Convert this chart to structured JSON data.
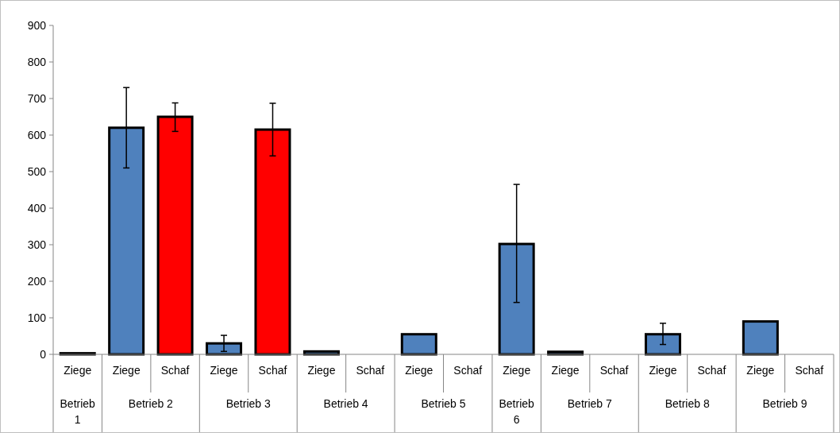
{
  "chart_data": {
    "type": "bar",
    "categories": [
      "Ziege",
      "Ziege",
      "Schaf",
      "Ziege",
      "Schaf",
      "Ziege",
      "Schaf",
      "Ziege",
      "Schaf",
      "Ziege",
      "Ziege",
      "Schaf",
      "Ziege",
      "Schaf",
      "Ziege",
      "Schaf"
    ],
    "values": [
      3,
      620,
      650,
      30,
      615,
      8,
      null,
      55,
      null,
      302,
      7,
      null,
      55,
      null,
      90,
      null
    ],
    "colors": [
      "#4f81bd",
      "#4f81bd",
      "#ff0000",
      "#4f81bd",
      "#ff0000",
      "#4f81bd",
      "#ff0000",
      "#4f81bd",
      "#ff0000",
      "#4f81bd",
      "#4f81bd",
      "#ff0000",
      "#4f81bd",
      "#ff0000",
      "#4f81bd",
      "#ff0000"
    ],
    "errors": [
      null,
      [
        510,
        730
      ],
      [
        610,
        688
      ],
      [
        8,
        52
      ],
      [
        543,
        687
      ],
      null,
      null,
      null,
      null,
      [
        142,
        465
      ],
      null,
      null,
      [
        27,
        85
      ],
      null,
      null,
      null
    ],
    "annotations": [
      "Betrieb 1",
      "Betrieb 2",
      "Betrieb 3",
      "Betrieb 4",
      "Betrieb 5",
      "Betrieb 6",
      "Betrieb 7",
      "Betrieb 8",
      "Betrieb 9"
    ],
    "ylim": [
      0,
      900
    ],
    "yticks": [
      0,
      100,
      200,
      300,
      400,
      500,
      600,
      700,
      800,
      900
    ],
    "grid": false
  }
}
